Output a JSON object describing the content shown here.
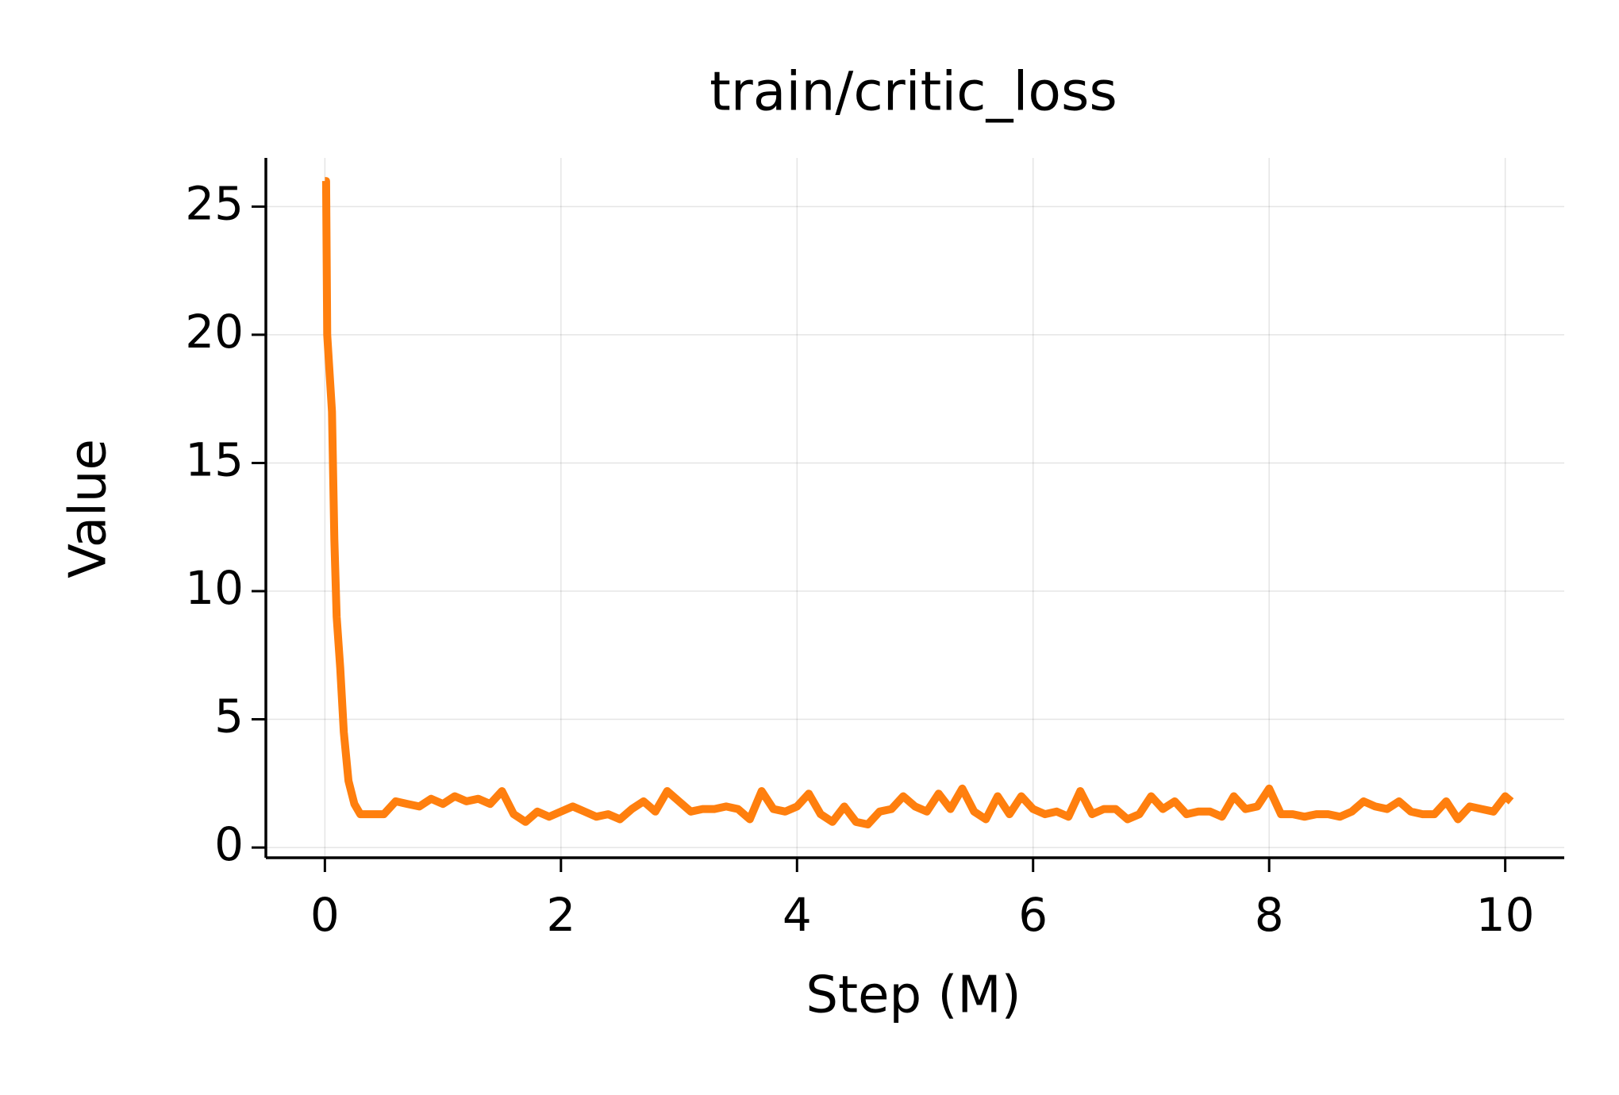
{
  "chart_data": {
    "type": "line",
    "title": "train/critic_loss",
    "x_label": "Step (M)",
    "y_label": "Value",
    "x": [
      0,
      0.01,
      0.02,
      0.04,
      0.06,
      0.08,
      0.1,
      0.13,
      0.16,
      0.2,
      0.25,
      0.3,
      0.35,
      0.4,
      0.5,
      0.6,
      0.7,
      0.8,
      0.9,
      1.0,
      1.1,
      1.2,
      1.3,
      1.4,
      1.5,
      1.6,
      1.7,
      1.8,
      1.9,
      2.0,
      2.1,
      2.2,
      2.3,
      2.4,
      2.5,
      2.6,
      2.7,
      2.8,
      2.9,
      3.0,
      3.1,
      3.2,
      3.3,
      3.4,
      3.5,
      3.6,
      3.7,
      3.8,
      3.9,
      4.0,
      4.1,
      4.2,
      4.3,
      4.4,
      4.5,
      4.6,
      4.7,
      4.8,
      4.9,
      5.0,
      5.1,
      5.2,
      5.3,
      5.4,
      5.5,
      5.6,
      5.7,
      5.8,
      5.9,
      6.0,
      6.1,
      6.2,
      6.3,
      6.4,
      6.5,
      6.6,
      6.7,
      6.8,
      6.9,
      7.0,
      7.1,
      7.2,
      7.3,
      7.4,
      7.5,
      7.6,
      7.7,
      7.8,
      7.9,
      8.0,
      8.1,
      8.2,
      8.3,
      8.4,
      8.5,
      8.6,
      8.7,
      8.8,
      8.9,
      9.0,
      9.1,
      9.2,
      9.3,
      9.4,
      9.5,
      9.6,
      9.7,
      9.8,
      9.9,
      10.0,
      10.05
    ],
    "values": [
      26,
      26,
      20,
      18.5,
      17,
      12,
      9,
      7,
      4.5,
      2.6,
      1.7,
      1.3,
      1.3,
      1.3,
      1.3,
      1.8,
      1.7,
      1.6,
      1.9,
      1.7,
      2.0,
      1.8,
      1.9,
      1.7,
      2.2,
      1.3,
      1.0,
      1.4,
      1.2,
      1.4,
      1.6,
      1.4,
      1.2,
      1.3,
      1.1,
      1.5,
      1.8,
      1.4,
      2.2,
      1.8,
      1.4,
      1.5,
      1.5,
      1.6,
      1.5,
      1.1,
      2.2,
      1.5,
      1.4,
      1.6,
      2.1,
      1.3,
      1.0,
      1.6,
      1.0,
      0.9,
      1.4,
      1.5,
      2.0,
      1.6,
      1.4,
      2.1,
      1.5,
      2.3,
      1.4,
      1.1,
      2.0,
      1.3,
      2.0,
      1.5,
      1.3,
      1.4,
      1.2,
      2.2,
      1.3,
      1.5,
      1.5,
      1.1,
      1.3,
      2.0,
      1.5,
      1.8,
      1.3,
      1.4,
      1.4,
      1.2,
      2.0,
      1.5,
      1.6,
      2.3,
      1.3,
      1.3,
      1.2,
      1.3,
      1.3,
      1.2,
      1.4,
      1.8,
      1.6,
      1.5,
      1.8,
      1.4,
      1.3,
      1.3,
      1.8,
      1.1,
      1.6,
      1.5,
      1.4,
      2.0,
      1.8
    ],
    "color": "#ff7f0e",
    "xlim": [
      -0.5,
      10.5
    ],
    "xticks": [
      0,
      2,
      4,
      6,
      8,
      10
    ],
    "ylim": [
      -0.4,
      26.9
    ],
    "yticks": [
      0,
      5,
      10,
      15,
      20,
      25
    ],
    "grid": true
  }
}
